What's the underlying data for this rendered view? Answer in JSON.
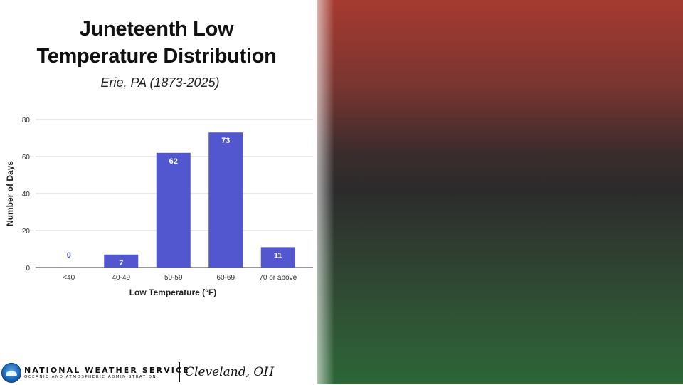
{
  "page": {
    "title_line1": "Juneteenth Low",
    "title_line2": "Temperature Distribution",
    "subtitle": "Erie, PA (1873-2025)"
  },
  "footer": {
    "org_name": "NATIONAL WEATHER SERVICE",
    "org_sub": "OCEANIC AND ATMOSPHERIC ADMINISTRATION",
    "office": "Cleveland, OH",
    "logo_icon": "noaa-logo-icon"
  },
  "colors": {
    "bar": "#5256cf",
    "gradient_top": "#a63a30",
    "gradient_middle": "#2b2b2b",
    "gradient_bottom": "#2d6637"
  },
  "chart_data": {
    "type": "bar",
    "categories": [
      "<40",
      "40-49",
      "50-59",
      "60-69",
      "70 or above"
    ],
    "values": [
      0,
      7,
      62,
      73,
      11
    ],
    "data_labels": [
      "0",
      "7",
      "62",
      "73",
      "11"
    ],
    "xlabel": "Low Temperature (°F)",
    "ylabel": "Number of Days",
    "ylim": [
      0,
      80
    ],
    "yticks": [
      0,
      20,
      40,
      60,
      80
    ],
    "grid": true,
    "legend": "none"
  }
}
